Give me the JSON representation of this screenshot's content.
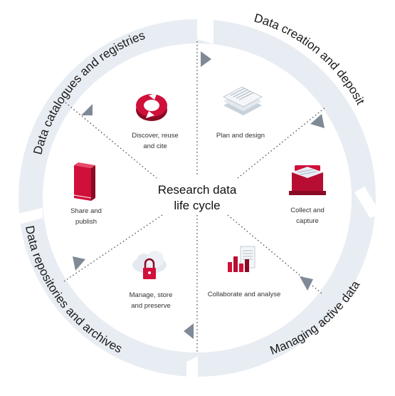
{
  "center": {
    "line1": "Research data",
    "line2": "life cycle"
  },
  "ring_labels": {
    "top_left": "Data catalogues and registries",
    "top_right": "Data creation and deposit",
    "bottom_right": "Managing active data",
    "bottom_left": "Data repositories and archives"
  },
  "sectors": {
    "discover": {
      "line1": "Discover, reuse",
      "line2": "and cite"
    },
    "plan": {
      "line1": "Plan and design"
    },
    "collect": {
      "line1": "Collect and",
      "line2": "capture"
    },
    "collaborate": {
      "line1": "Collaborate and analyse"
    },
    "manage": {
      "line1": "Manage, store",
      "line2": "and preserve"
    },
    "share": {
      "line1": "Share and",
      "line2": "publish"
    }
  },
  "icons": {
    "discover": "refresh-cycle-icon",
    "plan": "document-stack-icon",
    "collect": "briefcase-icon",
    "collaborate": "bar-chart-document-icon",
    "manage": "cloud-padlock-icon",
    "share": "book-icon"
  },
  "colors": {
    "ring": "#e8edf3",
    "ring_edge": "#ffffff",
    "accent": "#d0103a",
    "arrow": "#7f8a96",
    "dotted": "#555555"
  }
}
